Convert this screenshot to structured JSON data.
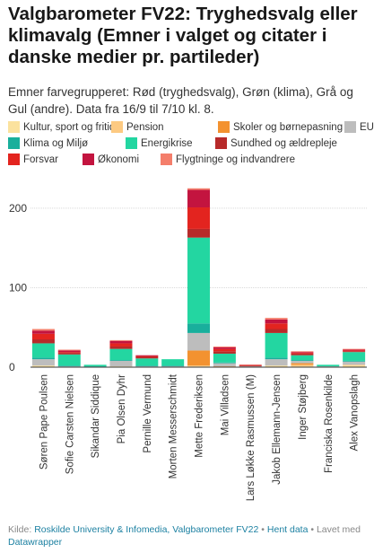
{
  "title": "Valgbarometer FV22: Tryghedsvalg eller klimavalg (Emner i valget og citater i danske medier pr. partileder)",
  "subtitle": "Emner farvegrupperet: Rød (tryghedsvalg), Grøn (klima), Grå og Gul (andre). Data fra 16/9 til 7/10 kl. 8.",
  "footer": {
    "source_label": "Kilde:",
    "source_link": "Roskilde University & Infomedia, Valgbarometer FV22",
    "separator": "•",
    "data_link": "Hent data",
    "made_label": "• Lavet med",
    "made_link": "Datawrapper"
  },
  "chart_data": {
    "type": "bar",
    "stacked": true,
    "categories": [
      "Søren Pape Poulsen",
      "Sofie Carsten Nielsen",
      "Sikandar Siddique",
      "Pia Olsen Dyhr",
      "Pernille Vermund",
      "Morten Messerschmidt",
      "Mette Frederiksen",
      "Mai Villadsen",
      "Lars Løkke Rasmussen (M)",
      "Jakob Ellemann-Jensen",
      "Inger Støjberg",
      "Franciska Rosenkilde",
      "Alex Vanopslagh"
    ],
    "ylim": [
      0,
      228
    ],
    "yticks": [
      0,
      100,
      200
    ],
    "grid": true,
    "legend_position": "top",
    "series": [
      {
        "name": "Kultur, sport og fritid",
        "color": "#fbe29e",
        "values": [
          2,
          0,
          0,
          1,
          0,
          0,
          1,
          0,
          0,
          2,
          1,
          0,
          2
        ]
      },
      {
        "name": "Pension",
        "color": "#fdca82",
        "values": [
          0,
          0,
          0,
          0,
          0,
          0,
          1,
          0,
          0,
          0,
          2,
          0,
          1
        ]
      },
      {
        "name": "Skoler og børnepasning",
        "color": "#f39230",
        "values": [
          0,
          0,
          0,
          0,
          0,
          0,
          19,
          1,
          0,
          0,
          2,
          0,
          0
        ]
      },
      {
        "name": "EU",
        "color": "#bdbdbd",
        "values": [
          8,
          1,
          0,
          7,
          1,
          1,
          22,
          4,
          1,
          8,
          3,
          1,
          4
        ]
      },
      {
        "name": "Klima og Miljø",
        "color": "#19af9c",
        "values": [
          2,
          1,
          1,
          1,
          1,
          1,
          12,
          1,
          0,
          2,
          1,
          0,
          1
        ]
      },
      {
        "name": "Energikrise",
        "color": "#23d6a1",
        "values": [
          18,
          14,
          2,
          14,
          9,
          8,
          108,
          11,
          0,
          31,
          6,
          2,
          11
        ]
      },
      {
        "name": "Sundhed og ældrepleje",
        "color": "#b72a2a",
        "values": [
          5,
          2,
          0,
          3,
          2,
          0,
          11,
          3,
          1,
          5,
          2,
          0,
          1
        ]
      },
      {
        "name": "Forsvar",
        "color": "#e3241f",
        "values": [
          7,
          1,
          0,
          4,
          1,
          0,
          27,
          3,
          1,
          7,
          1,
          0,
          1
        ]
      },
      {
        "name": "Økonomi",
        "color": "#c3143f",
        "values": [
          4,
          2,
          0,
          3,
          1,
          0,
          22,
          2,
          0,
          5,
          1,
          0,
          1
        ]
      },
      {
        "name": "Flygtninge og indvandrere",
        "color": "#f47e6b",
        "values": [
          2,
          1,
          0,
          1,
          0,
          0,
          2,
          1,
          0,
          2,
          1,
          0,
          1
        ]
      }
    ]
  }
}
